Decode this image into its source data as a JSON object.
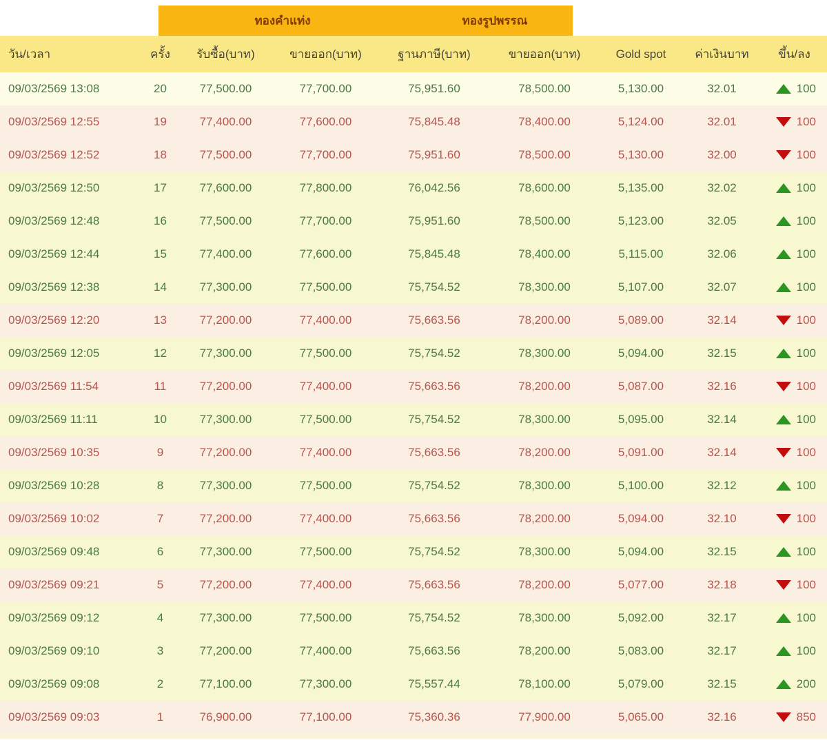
{
  "groups": {
    "gold_bar_label": "ทองคำแท่ง",
    "gold_ornament_label": "ทองรูปพรรณ",
    "band_color": "#F9B612",
    "label_color": "#833B02"
  },
  "columns": [
    "วัน/เวลา",
    "ครั้ง",
    "รับซื้อ(บาท)",
    "ขายออก(บาท)",
    "ฐานภาษี(บาท)",
    "ขายออก(บาท)",
    "Gold spot",
    "ค่าเงินบาท",
    "ขึ้น/ลง"
  ],
  "colors": {
    "up_text": "#4A7B46",
    "down_text": "#BC544A",
    "up_arrow": "#2B9422",
    "down_arrow": "#C30D0D",
    "up_row_bg": "#F7F7D0",
    "up_row_latest_bg": "#FEFDE8",
    "down_row_bg": "#FBEFE3",
    "header_row_bg": "#FAE886"
  },
  "rows": [
    {
      "datetime": "09/03/2569 13:08",
      "round": "20",
      "buy_bar": "77,500.00",
      "sell_bar": "77,700.00",
      "tax_base": "75,951.60",
      "sell_ornament": "78,500.00",
      "gold_spot": "5,130.00",
      "baht_rate": "32.01",
      "direction": "up",
      "change": "100",
      "highlight": true
    },
    {
      "datetime": "09/03/2569 12:55",
      "round": "19",
      "buy_bar": "77,400.00",
      "sell_bar": "77,600.00",
      "tax_base": "75,845.48",
      "sell_ornament": "78,400.00",
      "gold_spot": "5,124.00",
      "baht_rate": "32.01",
      "direction": "down",
      "change": "100",
      "highlight": false
    },
    {
      "datetime": "09/03/2569 12:52",
      "round": "18",
      "buy_bar": "77,500.00",
      "sell_bar": "77,700.00",
      "tax_base": "75,951.60",
      "sell_ornament": "78,500.00",
      "gold_spot": "5,130.00",
      "baht_rate": "32.00",
      "direction": "down",
      "change": "100",
      "highlight": false
    },
    {
      "datetime": "09/03/2569 12:50",
      "round": "17",
      "buy_bar": "77,600.00",
      "sell_bar": "77,800.00",
      "tax_base": "76,042.56",
      "sell_ornament": "78,600.00",
      "gold_spot": "5,135.00",
      "baht_rate": "32.02",
      "direction": "up",
      "change": "100",
      "highlight": false
    },
    {
      "datetime": "09/03/2569 12:48",
      "round": "16",
      "buy_bar": "77,500.00",
      "sell_bar": "77,700.00",
      "tax_base": "75,951.60",
      "sell_ornament": "78,500.00",
      "gold_spot": "5,123.00",
      "baht_rate": "32.05",
      "direction": "up",
      "change": "100",
      "highlight": false
    },
    {
      "datetime": "09/03/2569 12:44",
      "round": "15",
      "buy_bar": "77,400.00",
      "sell_bar": "77,600.00",
      "tax_base": "75,845.48",
      "sell_ornament": "78,400.00",
      "gold_spot": "5,115.00",
      "baht_rate": "32.06",
      "direction": "up",
      "change": "100",
      "highlight": false
    },
    {
      "datetime": "09/03/2569 12:38",
      "round": "14",
      "buy_bar": "77,300.00",
      "sell_bar": "77,500.00",
      "tax_base": "75,754.52",
      "sell_ornament": "78,300.00",
      "gold_spot": "5,107.00",
      "baht_rate": "32.07",
      "direction": "up",
      "change": "100",
      "highlight": false
    },
    {
      "datetime": "09/03/2569 12:20",
      "round": "13",
      "buy_bar": "77,200.00",
      "sell_bar": "77,400.00",
      "tax_base": "75,663.56",
      "sell_ornament": "78,200.00",
      "gold_spot": "5,089.00",
      "baht_rate": "32.14",
      "direction": "down",
      "change": "100",
      "highlight": false
    },
    {
      "datetime": "09/03/2569 12:05",
      "round": "12",
      "buy_bar": "77,300.00",
      "sell_bar": "77,500.00",
      "tax_base": "75,754.52",
      "sell_ornament": "78,300.00",
      "gold_spot": "5,094.00",
      "baht_rate": "32.15",
      "direction": "up",
      "change": "100",
      "highlight": false
    },
    {
      "datetime": "09/03/2569 11:54",
      "round": "11",
      "buy_bar": "77,200.00",
      "sell_bar": "77,400.00",
      "tax_base": "75,663.56",
      "sell_ornament": "78,200.00",
      "gold_spot": "5,087.00",
      "baht_rate": "32.16",
      "direction": "down",
      "change": "100",
      "highlight": false
    },
    {
      "datetime": "09/03/2569 11:11",
      "round": "10",
      "buy_bar": "77,300.00",
      "sell_bar": "77,500.00",
      "tax_base": "75,754.52",
      "sell_ornament": "78,300.00",
      "gold_spot": "5,095.00",
      "baht_rate": "32.14",
      "direction": "up",
      "change": "100",
      "highlight": false
    },
    {
      "datetime": "09/03/2569 10:35",
      "round": "9",
      "buy_bar": "77,200.00",
      "sell_bar": "77,400.00",
      "tax_base": "75,663.56",
      "sell_ornament": "78,200.00",
      "gold_spot": "5,091.00",
      "baht_rate": "32.14",
      "direction": "down",
      "change": "100",
      "highlight": false
    },
    {
      "datetime": "09/03/2569 10:28",
      "round": "8",
      "buy_bar": "77,300.00",
      "sell_bar": "77,500.00",
      "tax_base": "75,754.52",
      "sell_ornament": "78,300.00",
      "gold_spot": "5,100.00",
      "baht_rate": "32.12",
      "direction": "up",
      "change": "100",
      "highlight": false
    },
    {
      "datetime": "09/03/2569 10:02",
      "round": "7",
      "buy_bar": "77,200.00",
      "sell_bar": "77,400.00",
      "tax_base": "75,663.56",
      "sell_ornament": "78,200.00",
      "gold_spot": "5,094.00",
      "baht_rate": "32.10",
      "direction": "down",
      "change": "100",
      "highlight": false
    },
    {
      "datetime": "09/03/2569 09:48",
      "round": "6",
      "buy_bar": "77,300.00",
      "sell_bar": "77,500.00",
      "tax_base": "75,754.52",
      "sell_ornament": "78,300.00",
      "gold_spot": "5,094.00",
      "baht_rate": "32.15",
      "direction": "up",
      "change": "100",
      "highlight": false
    },
    {
      "datetime": "09/03/2569 09:21",
      "round": "5",
      "buy_bar": "77,200.00",
      "sell_bar": "77,400.00",
      "tax_base": "75,663.56",
      "sell_ornament": "78,200.00",
      "gold_spot": "5,077.00",
      "baht_rate": "32.18",
      "direction": "down",
      "change": "100",
      "highlight": false
    },
    {
      "datetime": "09/03/2569 09:12",
      "round": "4",
      "buy_bar": "77,300.00",
      "sell_bar": "77,500.00",
      "tax_base": "75,754.52",
      "sell_ornament": "78,300.00",
      "gold_spot": "5,092.00",
      "baht_rate": "32.17",
      "direction": "up",
      "change": "100",
      "highlight": false
    },
    {
      "datetime": "09/03/2569 09:10",
      "round": "3",
      "buy_bar": "77,200.00",
      "sell_bar": "77,400.00",
      "tax_base": "75,663.56",
      "sell_ornament": "78,200.00",
      "gold_spot": "5,083.00",
      "baht_rate": "32.17",
      "direction": "up",
      "change": "100",
      "highlight": false
    },
    {
      "datetime": "09/03/2569 09:08",
      "round": "2",
      "buy_bar": "77,100.00",
      "sell_bar": "77,300.00",
      "tax_base": "75,557.44",
      "sell_ornament": "78,100.00",
      "gold_spot": "5,079.00",
      "baht_rate": "32.15",
      "direction": "up",
      "change": "200",
      "highlight": false
    },
    {
      "datetime": "09/03/2569 09:03",
      "round": "1",
      "buy_bar": "76,900.00",
      "sell_bar": "77,100.00",
      "tax_base": "75,360.36",
      "sell_ornament": "77,900.00",
      "gold_spot": "5,065.00",
      "baht_rate": "32.16",
      "direction": "down",
      "change": "850",
      "highlight": false
    }
  ]
}
